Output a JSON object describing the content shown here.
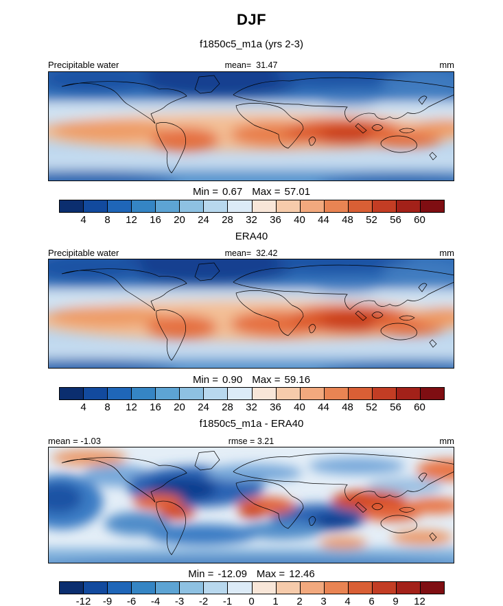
{
  "title": "DJF",
  "subtitle": "f1850c5_m1a (yrs 2-3)",
  "section_labels": {
    "obs": "ERA40",
    "diff": "f1850c5_m1a - ERA40"
  },
  "panels": [
    {
      "field": "Precipitable water",
      "mean_label": "mean=",
      "mean": "31.47",
      "units": "mm",
      "min_label": "Min =",
      "min": "0.67",
      "max_label": "Max =",
      "max": "57.01",
      "colorbar": {
        "ticks": [
          "4",
          "8",
          "12",
          "16",
          "20",
          "24",
          "28",
          "32",
          "36",
          "40",
          "44",
          "48",
          "52",
          "56",
          "60"
        ],
        "colors": [
          "#0b2e6f",
          "#124a9e",
          "#1f66b8",
          "#3585c4",
          "#5da4d4",
          "#8ec1e2",
          "#b8d8ee",
          "#dcebf7",
          "#f8e6d8",
          "#f6cbab",
          "#f2a97e",
          "#e98453",
          "#d95f35",
          "#c33d24",
          "#a32119",
          "#7f0e12"
        ]
      }
    },
    {
      "field": "Precipitable water",
      "mean_label": "mean=",
      "mean": "32.42",
      "units": "mm",
      "min_label": "Min =",
      "min": "0.90",
      "max_label": "Max =",
      "max": "59.16",
      "colorbar": {
        "ticks": [
          "4",
          "8",
          "12",
          "16",
          "20",
          "24",
          "28",
          "32",
          "36",
          "40",
          "44",
          "48",
          "52",
          "56",
          "60"
        ],
        "colors": [
          "#0b2e6f",
          "#124a9e",
          "#1f66b8",
          "#3585c4",
          "#5da4d4",
          "#8ec1e2",
          "#b8d8ee",
          "#dcebf7",
          "#f8e6d8",
          "#f6cbab",
          "#f2a97e",
          "#e98453",
          "#d95f35",
          "#c33d24",
          "#a32119",
          "#7f0e12"
        ]
      }
    },
    {
      "mean_label": "mean =",
      "mean": "-1.03",
      "rmse_label": "rmse =",
      "rmse": "3.21",
      "units": "mm",
      "min_label": "Min =",
      "min": "-12.09",
      "max_label": "Max =",
      "max": "12.46",
      "colorbar": {
        "ticks": [
          "-12",
          "-9",
          "-6",
          "-4",
          "-3",
          "-2",
          "-1",
          "0",
          "1",
          "2",
          "3",
          "4",
          "6",
          "9",
          "12"
        ],
        "colors": [
          "#0b2e6f",
          "#124a9e",
          "#1f66b8",
          "#3585c4",
          "#5da4d4",
          "#8ec1e2",
          "#b8d8ee",
          "#dcebf7",
          "#f8e6d8",
          "#f6cbab",
          "#f2a97e",
          "#e98453",
          "#d95f35",
          "#c33d24",
          "#a32119",
          "#7f0e12"
        ]
      }
    }
  ],
  "chart_data": [
    {
      "type": "heatmap",
      "subtype": "filled-contour world map",
      "season": "DJF",
      "dataset": "f1850c5_m1a (yrs 2-3)",
      "variable": "Precipitable water",
      "units": "mm",
      "projection": "global equirectangular, 90N-90S / 180W-180E",
      "stats": {
        "mean": 31.47,
        "min": 0.67,
        "max": 57.01
      },
      "contour_levels": [
        4,
        8,
        12,
        16,
        20,
        24,
        28,
        32,
        36,
        40,
        44,
        48,
        52,
        56,
        60
      ],
      "pattern": "High values (44-57 mm, dark red) in a wavy tropical band strongest over the Indian Ocean and Maritime Continent, dipping south over South America, southern Africa and the SW Pacific; low values (<8 mm, dark blue) over high northern latitudes, Tibet and polar oceans."
    },
    {
      "type": "heatmap",
      "subtype": "filled-contour world map",
      "season": "DJF",
      "dataset": "ERA40",
      "variable": "Precipitable water",
      "units": "mm",
      "projection": "global equirectangular, 90N-90S / 180W-180E",
      "stats": {
        "mean": 32.42,
        "min": 0.9,
        "max": 59.16
      },
      "contour_levels": [
        4,
        8,
        12,
        16,
        20,
        24,
        28,
        32,
        36,
        40,
        44,
        48,
        52,
        56,
        60
      ],
      "pattern": "Same tropical moisture band as the model but slightly wider and wetter (max 59.16 mm over the Maritime Continent); dry polar and continental-interior minima."
    },
    {
      "type": "heatmap",
      "subtype": "filled-contour difference map",
      "season": "DJF",
      "dataset": "f1850c5_m1a - ERA40",
      "variable": "Precipitable water difference",
      "units": "mm",
      "projection": "global equirectangular, 90N-90S / 180W-180E",
      "stats": {
        "mean": -1.03,
        "rmse": 3.21,
        "min": -12.09,
        "max": 12.46
      },
      "contour_levels": [
        -12,
        -9,
        -6,
        -4,
        -3,
        -2,
        -1,
        0,
        1,
        2,
        3,
        4,
        6,
        9,
        12
      ],
      "pattern": "Dry bias (blue, to -12 mm) over North Africa/Arabia, the subtropical south Indian and Atlantic Oceans and the Southern Ocean; wet bias (red, to +12 mm) over the Maritime Continent, central/east Pacific, equatorial Africa and northern South America."
    }
  ]
}
